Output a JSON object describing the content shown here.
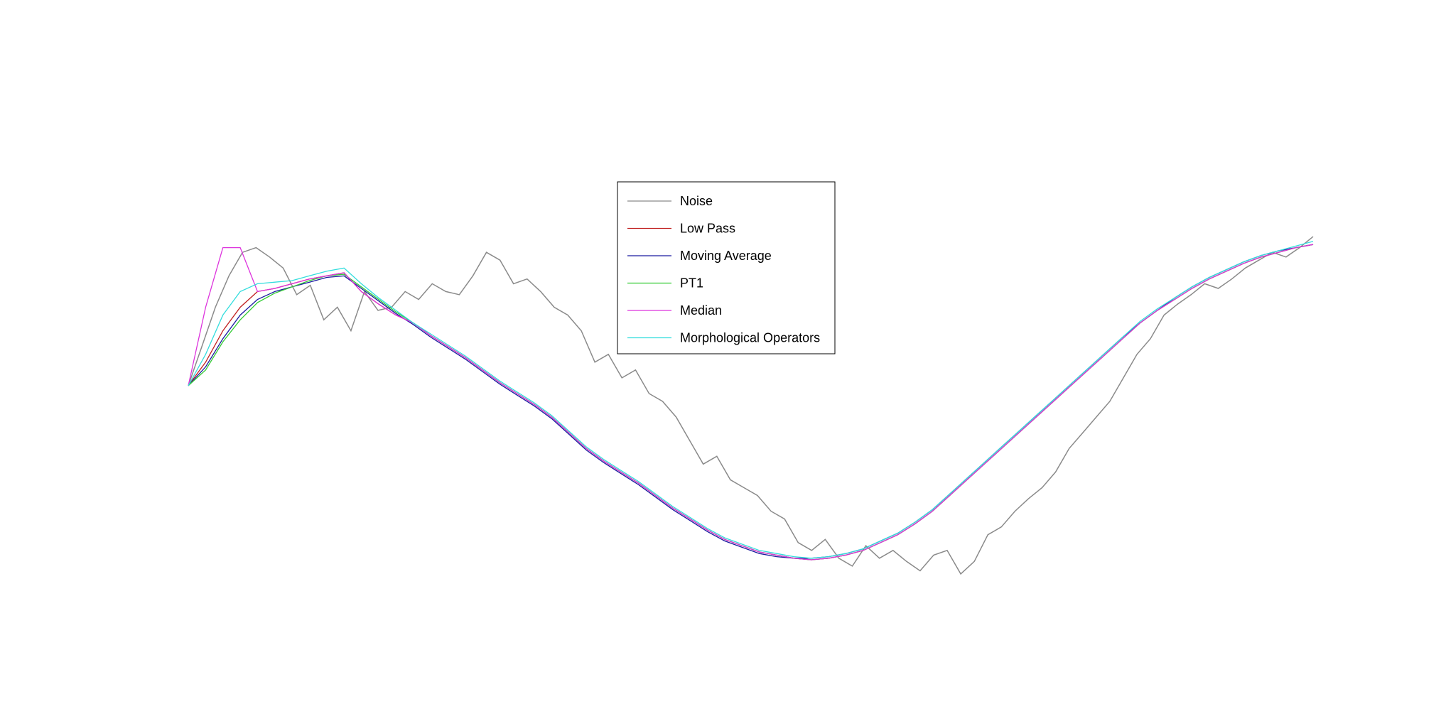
{
  "chart_data": {
    "type": "line",
    "title": "",
    "xlabel": "",
    "ylabel": "",
    "grid": false,
    "axes_visible": false,
    "legend_position": "center-top",
    "series": [
      {
        "name": "Noise",
        "color": "#8a8a8a",
        "values": [
          0.1,
          0.35,
          0.6,
          0.8,
          0.95,
          0.98,
          0.92,
          0.85,
          0.68,
          0.74,
          0.52,
          0.6,
          0.45,
          0.7,
          0.58,
          0.6,
          0.7,
          0.65,
          0.75,
          0.7,
          0.68,
          0.8,
          0.95,
          0.9,
          0.75,
          0.78,
          0.7,
          0.6,
          0.55,
          0.45,
          0.25,
          0.3,
          0.15,
          0.2,
          0.05,
          0.0,
          -0.1,
          -0.25,
          -0.4,
          -0.35,
          -0.5,
          -0.55,
          -0.6,
          -0.7,
          -0.75,
          -0.9,
          -0.95,
          -0.88,
          -1.0,
          -1.05,
          -0.92,
          -1.0,
          -0.95,
          -1.02,
          -1.08,
          -0.98,
          -0.95,
          -1.1,
          -1.02,
          -0.85,
          -0.8,
          -0.7,
          -0.62,
          -0.55,
          -0.45,
          -0.3,
          -0.2,
          -0.1,
          0.0,
          0.15,
          0.3,
          0.4,
          0.55,
          0.62,
          0.68,
          0.75,
          0.72,
          0.78,
          0.85,
          0.9,
          0.95,
          0.92,
          0.98,
          1.05
        ]
      },
      {
        "name": "Low Pass",
        "color": "#c02020",
        "values": [
          0.1,
          0.25,
          0.45,
          0.6,
          0.7,
          0.72,
          0.75,
          0.78,
          0.8,
          0.82,
          0.7,
          0.62,
          0.55,
          0.5,
          0.42,
          0.35,
          0.28,
          0.2,
          0.12,
          0.05,
          -0.02,
          -0.1,
          -0.2,
          -0.3,
          -0.38,
          -0.45,
          -0.52,
          -0.6,
          -0.68,
          -0.75,
          -0.82,
          -0.88,
          -0.92,
          -0.96,
          -0.98,
          -1.0,
          -1.01,
          -1.0,
          -0.98,
          -0.95,
          -0.9,
          -0.85,
          -0.78,
          -0.7,
          -0.6,
          -0.5,
          -0.4,
          -0.3,
          -0.2,
          -0.1,
          0.0,
          0.1,
          0.2,
          0.3,
          0.4,
          0.5,
          0.58,
          0.65,
          0.72,
          0.78,
          0.83,
          0.88,
          0.92,
          0.95,
          0.98,
          1.0
        ]
      },
      {
        "name": "Moving Average",
        "color": "#1a1aa0",
        "values": [
          0.1,
          0.22,
          0.4,
          0.55,
          0.65,
          0.7,
          0.73,
          0.76,
          0.79,
          0.8,
          0.72,
          0.64,
          0.56,
          0.49,
          0.41,
          0.34,
          0.27,
          0.19,
          0.11,
          0.04,
          -0.03,
          -0.11,
          -0.21,
          -0.31,
          -0.39,
          -0.46,
          -0.53,
          -0.61,
          -0.69,
          -0.76,
          -0.83,
          -0.89,
          -0.93,
          -0.97,
          -0.99,
          -1.0,
          -1.0,
          -0.99,
          -0.97,
          -0.94,
          -0.89,
          -0.84,
          -0.77,
          -0.69,
          -0.59,
          -0.49,
          -0.39,
          -0.29,
          -0.19,
          -0.09,
          0.01,
          0.11,
          0.21,
          0.31,
          0.41,
          0.5,
          0.58,
          0.66,
          0.73,
          0.79,
          0.84,
          0.89,
          0.93,
          0.96,
          0.98,
          1.0
        ]
      },
      {
        "name": "PT1",
        "color": "#33cc33",
        "values": [
          0.1,
          0.2,
          0.38,
          0.52,
          0.63,
          0.69,
          0.73,
          0.77,
          0.8,
          0.81,
          0.73,
          0.65,
          0.57,
          0.5,
          0.42,
          0.35,
          0.28,
          0.2,
          0.12,
          0.05,
          -0.02,
          -0.1,
          -0.2,
          -0.3,
          -0.38,
          -0.45,
          -0.52,
          -0.6,
          -0.68,
          -0.75,
          -0.82,
          -0.88,
          -0.92,
          -0.96,
          -0.98,
          -1.0,
          -1.01,
          -1.0,
          -0.98,
          -0.95,
          -0.9,
          -0.85,
          -0.78,
          -0.7,
          -0.6,
          -0.5,
          -0.4,
          -0.3,
          -0.2,
          -0.1,
          0.0,
          0.1,
          0.2,
          0.3,
          0.4,
          0.5,
          0.58,
          0.65,
          0.72,
          0.78,
          0.83,
          0.88,
          0.92,
          0.95,
          0.98,
          1.0
        ]
      },
      {
        "name": "Median",
        "color": "#dd33dd",
        "values": [
          0.1,
          0.6,
          0.98,
          0.98,
          0.7,
          0.72,
          0.75,
          0.78,
          0.8,
          0.82,
          0.7,
          0.62,
          0.55,
          0.5,
          0.42,
          0.35,
          0.28,
          0.2,
          0.12,
          0.05,
          -0.02,
          -0.1,
          -0.2,
          -0.3,
          -0.38,
          -0.45,
          -0.52,
          -0.6,
          -0.68,
          -0.75,
          -0.82,
          -0.88,
          -0.92,
          -0.96,
          -0.98,
          -1.0,
          -1.01,
          -1.0,
          -0.98,
          -0.95,
          -0.9,
          -0.85,
          -0.78,
          -0.7,
          -0.6,
          -0.5,
          -0.4,
          -0.3,
          -0.2,
          -0.1,
          0.0,
          0.1,
          0.2,
          0.3,
          0.4,
          0.5,
          0.58,
          0.65,
          0.72,
          0.78,
          0.83,
          0.88,
          0.92,
          0.95,
          0.98,
          1.0
        ]
      },
      {
        "name": "Morphological Operators",
        "color": "#33dddd",
        "values": [
          0.1,
          0.3,
          0.55,
          0.7,
          0.75,
          0.76,
          0.77,
          0.8,
          0.83,
          0.85,
          0.75,
          0.66,
          0.58,
          0.5,
          0.43,
          0.36,
          0.29,
          0.21,
          0.13,
          0.06,
          -0.01,
          -0.09,
          -0.19,
          -0.29,
          -0.37,
          -0.44,
          -0.51,
          -0.59,
          -0.67,
          -0.74,
          -0.81,
          -0.87,
          -0.91,
          -0.95,
          -0.97,
          -0.99,
          -1.0,
          -0.99,
          -0.97,
          -0.94,
          -0.89,
          -0.84,
          -0.77,
          -0.69,
          -0.59,
          -0.49,
          -0.39,
          -0.29,
          -0.19,
          -0.09,
          0.01,
          0.11,
          0.21,
          0.31,
          0.41,
          0.51,
          0.59,
          0.66,
          0.73,
          0.79,
          0.84,
          0.89,
          0.93,
          0.96,
          0.99,
          1.02
        ]
      }
    ]
  }
}
